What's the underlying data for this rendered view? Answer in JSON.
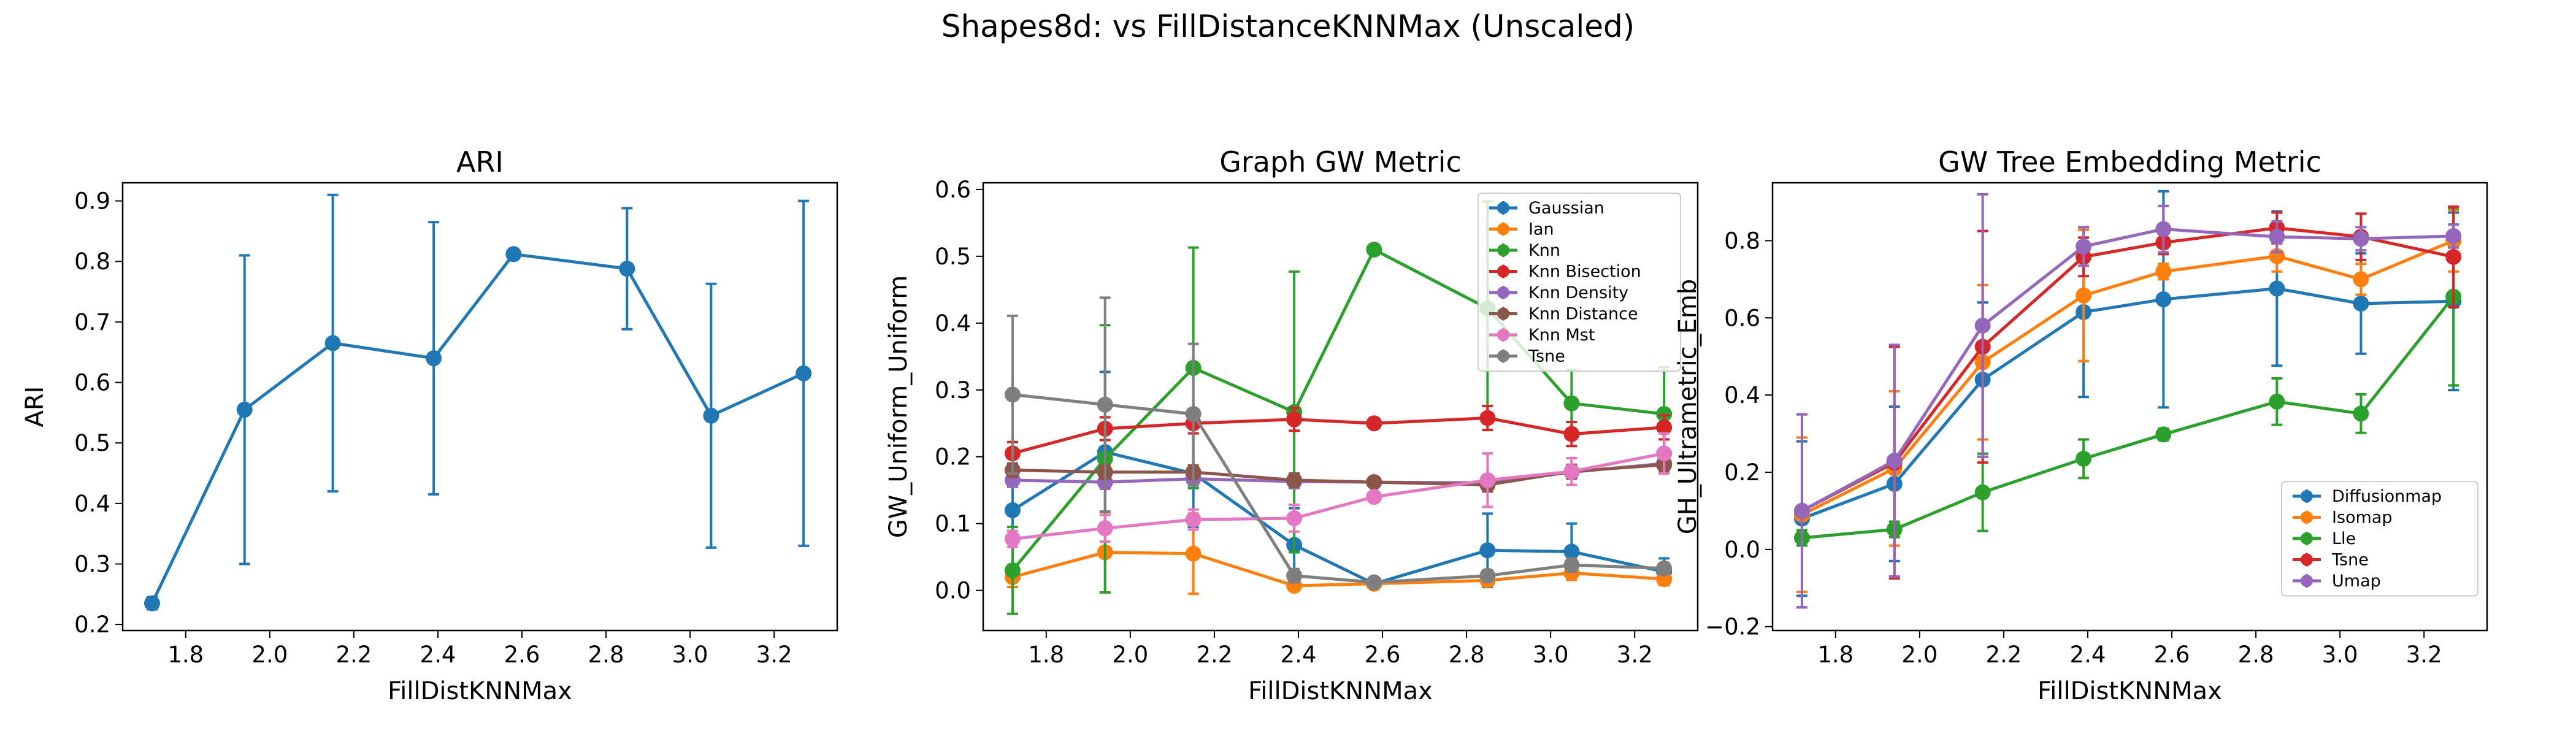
{
  "suptitle": "Shapes8d: vs FillDistanceKNNMax (Unscaled)",
  "colors": {
    "blue": "#1f77b4",
    "orange": "#ff7f0e",
    "green": "#2ca02c",
    "red": "#d62728",
    "purple": "#9467bd",
    "brown": "#8c564b",
    "pink": "#e377c2",
    "gray": "#7f7f7f"
  },
  "chart_data": [
    {
      "type": "line",
      "title": "ARI",
      "xlabel": "FillDistKNNMax",
      "ylabel": "ARI",
      "xlim": [
        1.65,
        3.35
      ],
      "ylim": [
        0.19,
        0.93
      ],
      "xticks": [
        1.8,
        2.0,
        2.2,
        2.4,
        2.6,
        2.8,
        3.0,
        3.2
      ],
      "xtick_labels": [
        "1.8",
        "2.0",
        "2.2",
        "2.4",
        "2.6",
        "2.8",
        "3.0",
        "3.2"
      ],
      "yticks": [
        0.2,
        0.3,
        0.4,
        0.5,
        0.6,
        0.7,
        0.8,
        0.9
      ],
      "ytick_labels": [
        "0.2",
        "0.3",
        "0.4",
        "0.5",
        "0.6",
        "0.7",
        "0.8",
        "0.9"
      ],
      "x": [
        1.72,
        1.94,
        2.15,
        2.39,
        2.58,
        2.85,
        3.05,
        3.27
      ],
      "series": [
        {
          "color": "blue",
          "values": [
            0.235,
            0.555,
            0.665,
            0.64,
            0.812,
            0.788,
            0.545,
            0.615
          ],
          "err": [
            0.01,
            0.255,
            0.245,
            0.225,
            0.0,
            0.1,
            0.218,
            0.285
          ]
        }
      ]
    },
    {
      "type": "line",
      "title": "Graph GW Metric",
      "xlabel": "FillDistKNNMax",
      "ylabel": "GW_Uniform_Uniform",
      "xlim": [
        1.65,
        3.35
      ],
      "ylim": [
        -0.06,
        0.61
      ],
      "xticks": [
        1.8,
        2.0,
        2.2,
        2.4,
        2.6,
        2.8,
        3.0,
        3.2
      ],
      "xtick_labels": [
        "1.8",
        "2.0",
        "2.2",
        "2.4",
        "2.6",
        "2.8",
        "3.0",
        "3.2"
      ],
      "yticks": [
        0.0,
        0.1,
        0.2,
        0.3,
        0.4,
        0.5,
        0.6
      ],
      "ytick_labels": [
        "0.0",
        "0.1",
        "0.2",
        "0.3",
        "0.4",
        "0.5",
        "0.6"
      ],
      "legend": "top-right",
      "x": [
        1.72,
        1.94,
        2.15,
        2.39,
        2.58,
        2.85,
        3.05,
        3.27
      ],
      "series": [
        {
          "name": "Gaussian",
          "color": "blue",
          "values": [
            0.12,
            0.207,
            0.175,
            0.068,
            0.01,
            0.06,
            0.058,
            0.028
          ],
          "err": [
            0.05,
            0.12,
            0.08,
            0.055,
            0.005,
            0.055,
            0.042,
            0.02
          ]
        },
        {
          "name": "Ian",
          "color": "orange",
          "values": [
            0.02,
            0.057,
            0.055,
            0.007,
            0.01,
            0.015,
            0.026,
            0.017
          ],
          "err": [
            0.015,
            0.06,
            0.06,
            0.005,
            0.005,
            0.008,
            0.01,
            0.008
          ]
        },
        {
          "name": "Knn",
          "color": "green",
          "values": [
            0.03,
            0.197,
            0.333,
            0.267,
            0.51,
            0.422,
            0.28,
            0.264
          ],
          "err": [
            0.065,
            0.2,
            0.18,
            0.21,
            0.0,
            0.16,
            0.05,
            0.07
          ]
        },
        {
          "name": "Knn Bisection",
          "color": "red",
          "values": [
            0.205,
            0.242,
            0.25,
            0.256,
            0.25,
            0.258,
            0.234,
            0.244
          ],
          "err": [
            0.017,
            0.017,
            0.015,
            0.017,
            0.007,
            0.018,
            0.018,
            0.018
          ]
        },
        {
          "name": "Knn Density",
          "color": "purple",
          "values": [
            0.165,
            0.162,
            0.167,
            0.163,
            0.162,
            0.161,
            0.177,
            0.19
          ],
          "err": [
            0.01,
            0.01,
            0.01,
            0.01,
            0.005,
            0.01,
            0.01,
            0.01
          ]
        },
        {
          "name": "Knn Distance",
          "color": "brown",
          "values": [
            0.18,
            0.177,
            0.177,
            0.165,
            0.162,
            0.158,
            0.178,
            0.188
          ],
          "err": [
            0.01,
            0.01,
            0.01,
            0.01,
            0.005,
            0.01,
            0.01,
            0.01
          ]
        },
        {
          "name": "Knn Mst",
          "color": "pink",
          "values": [
            0.077,
            0.093,
            0.106,
            0.108,
            0.14,
            0.165,
            0.178,
            0.205
          ],
          "err": [
            0.012,
            0.02,
            0.015,
            0.02,
            0.007,
            0.04,
            0.02,
            0.03
          ]
        },
        {
          "name": "Tsne",
          "color": "gray",
          "values": [
            0.293,
            0.278,
            0.264,
            0.022,
            0.012,
            0.022,
            0.038,
            0.033
          ],
          "err": [
            0.118,
            0.16,
            0.105,
            0.01,
            0.005,
            0.008,
            0.01,
            0.008
          ]
        }
      ]
    },
    {
      "type": "line",
      "title": "GW Tree Embedding Metric",
      "xlabel": "FillDistKNNMax",
      "ylabel": "GH_Ultrametric_Emb",
      "xlim": [
        1.65,
        3.35
      ],
      "ylim": [
        -0.21,
        0.95
      ],
      "xticks": [
        1.8,
        2.0,
        2.2,
        2.4,
        2.6,
        2.8,
        3.0,
        3.2
      ],
      "xtick_labels": [
        "1.8",
        "2.0",
        "2.2",
        "2.4",
        "2.6",
        "2.8",
        "3.0",
        "3.2"
      ],
      "yticks": [
        -0.2,
        0.0,
        0.2,
        0.4,
        0.6,
        0.8
      ],
      "ytick_labels": [
        "−0.2",
        "0.0",
        "0.2",
        "0.4",
        "0.6",
        "0.8"
      ],
      "legend": "bottom-right",
      "x": [
        1.72,
        1.94,
        2.15,
        2.39,
        2.58,
        2.85,
        3.05,
        3.27
      ],
      "series": [
        {
          "name": "Diffusionmap",
          "color": "blue",
          "values": [
            0.08,
            0.17,
            0.44,
            0.615,
            0.648,
            0.676,
            0.637,
            0.643
          ],
          "err": [
            0.2,
            0.2,
            0.2,
            0.22,
            0.28,
            0.2,
            0.13,
            0.23
          ]
        },
        {
          "name": "Isomap",
          "color": "orange",
          "values": [
            0.09,
            0.21,
            0.485,
            0.658,
            0.72,
            0.76,
            0.7,
            0.8
          ],
          "err": [
            0.2,
            0.2,
            0.2,
            0.17,
            0.02,
            0.04,
            0.04,
            0.08
          ]
        },
        {
          "name": "Lle",
          "color": "green",
          "values": [
            0.03,
            0.052,
            0.148,
            0.235,
            0.298,
            0.383,
            0.352,
            0.655
          ],
          "err": [
            0.02,
            0.02,
            0.1,
            0.05,
            0.015,
            0.06,
            0.05,
            0.23
          ]
        },
        {
          "name": "Tsne",
          "color": "red",
          "values": [
            0.1,
            0.225,
            0.525,
            0.758,
            0.795,
            0.833,
            0.81,
            0.758
          ],
          "err": [
            0.25,
            0.3,
            0.3,
            0.05,
            0.03,
            0.04,
            0.06,
            0.13
          ]
        },
        {
          "name": "Umap",
          "color": "purple",
          "values": [
            0.1,
            0.23,
            0.58,
            0.785,
            0.83,
            0.81,
            0.805,
            0.812
          ],
          "err": [
            0.25,
            0.3,
            0.34,
            0.05,
            0.06,
            0.04,
            0.03,
            0.03
          ]
        }
      ]
    }
  ]
}
